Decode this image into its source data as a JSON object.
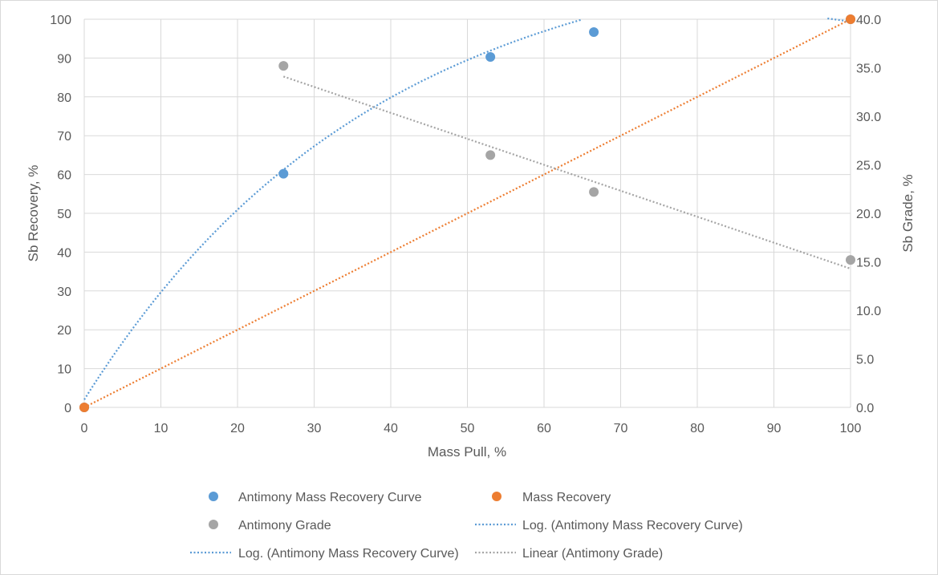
{
  "chart_data": {
    "type": "scatter",
    "title": "",
    "xlabel": "Mass Pull, %",
    "ylabel": "Sb Recovery, %",
    "y2label": "Sb Grade, %",
    "xlim": [
      0,
      100
    ],
    "ylim": [
      0,
      100
    ],
    "y2lim": [
      0,
      40
    ],
    "x_ticks": [
      0,
      10,
      20,
      30,
      40,
      50,
      60,
      70,
      80,
      90,
      100
    ],
    "y_ticks": [
      0,
      10,
      20,
      30,
      40,
      50,
      60,
      70,
      80,
      90,
      100
    ],
    "y2_ticks": [
      "0.0",
      "5.0",
      "10.0",
      "15.0",
      "20.0",
      "25.0",
      "30.0",
      "35.0",
      "40.0"
    ],
    "grid": true,
    "legend_position": "bottom",
    "series": [
      {
        "name": "Antimony Mass Recovery Curve",
        "axis": "left",
        "color": "#5b9bd5",
        "points": [
          [
            0,
            0
          ],
          [
            26,
            60.2
          ],
          [
            53,
            90.3
          ],
          [
            66.5,
            96.7
          ],
          [
            100,
            100
          ]
        ]
      },
      {
        "name": "Mass Recovery",
        "axis": "left",
        "color": "#ed7d31",
        "points": [
          [
            0,
            0
          ],
          [
            100,
            100
          ]
        ]
      },
      {
        "name": "Antimony Grade",
        "axis": "right",
        "color": "#a5a5a5",
        "points": [
          [
            26,
            35.2
          ],
          [
            53,
            26.0
          ],
          [
            66.5,
            22.2
          ],
          [
            100,
            15.2
          ]
        ]
      }
    ],
    "trendlines": [
      {
        "name": "Log. (Antimony Mass Recovery Curve)",
        "type": "log",
        "color": "#5b9bd5",
        "style": "dotted"
      },
      {
        "name": "Log. (Antimony Mass Recovery Curve)",
        "type": "log",
        "color": "#5b9bd5",
        "style": "dotted"
      },
      {
        "name": "Linear (Antimony Grade)",
        "type": "linear",
        "color": "#a5a5a5",
        "style": "dotted",
        "axis": "right",
        "x": [
          26,
          100
        ],
        "y": [
          34.1,
          14.3
        ]
      },
      {
        "name": "Mass Recovery",
        "type": "linear",
        "color": "#ed7d31",
        "style": "dotted",
        "axis": "left",
        "x": [
          0,
          100
        ],
        "y": [
          0,
          100
        ]
      }
    ]
  }
}
